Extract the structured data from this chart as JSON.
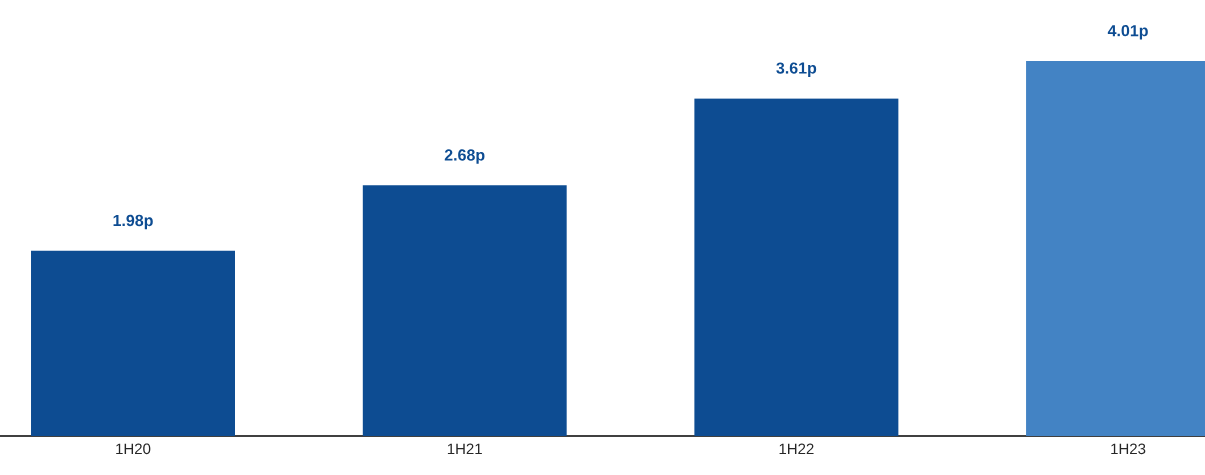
{
  "chart_data": {
    "type": "bar",
    "categories": [
      "1H20",
      "1H21",
      "1H22",
      "1H23"
    ],
    "values": [
      1.98,
      2.68,
      3.61,
      4.01
    ],
    "value_labels": [
      "1.98p",
      "2.68p",
      "3.61p",
      "4.01p"
    ],
    "colors": [
      "#0d4c92",
      "#0d4c92",
      "#0d4c92",
      "#4383c4"
    ]
  }
}
